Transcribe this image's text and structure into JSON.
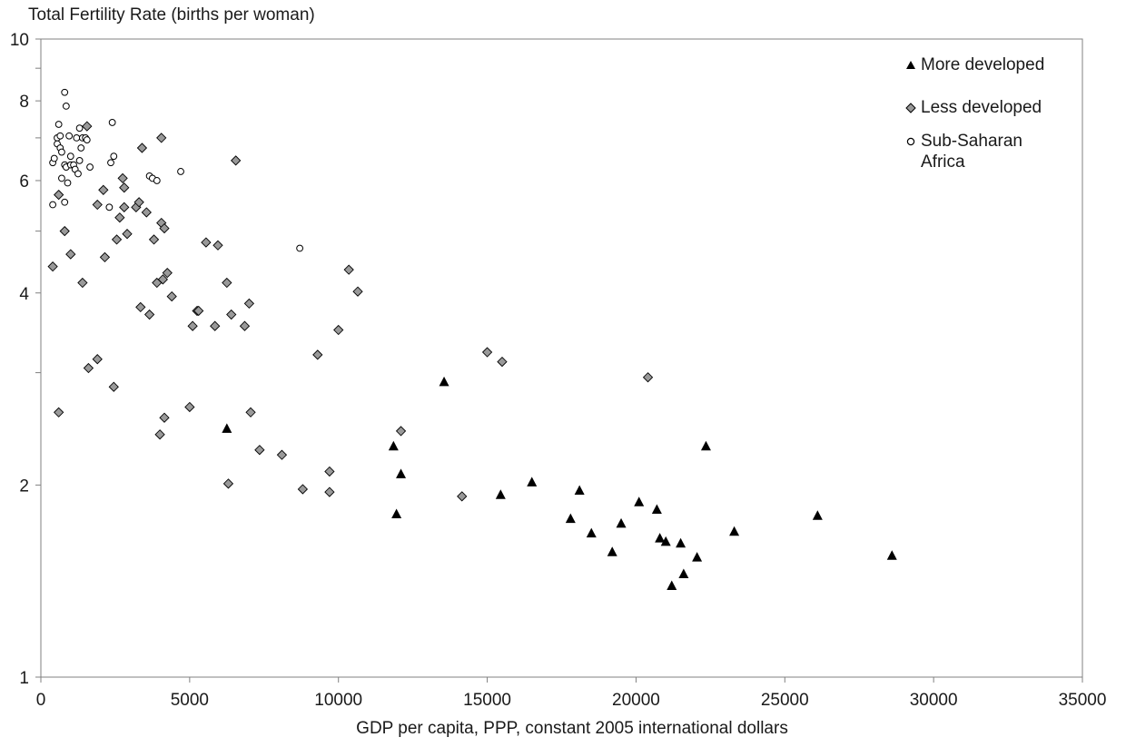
{
  "chart_data": {
    "type": "scatter",
    "title": "Total Fertility Rate (births per woman)",
    "xlabel": "GDP per capita, PPP, constant 2005 international dollars",
    "ylabel": "Total Fertility Rate (births per woman)",
    "xlim": [
      0,
      35000
    ],
    "ylim": [
      1,
      10
    ],
    "yscale": "log",
    "x_ticks": [
      "0",
      "5000",
      "10000",
      "15000",
      "20000",
      "25000",
      "30000",
      "35000"
    ],
    "y_ticks": [
      "1",
      "2",
      "4",
      "6",
      "8",
      "10"
    ],
    "grid": false,
    "legend_position": "top-right",
    "series": [
      {
        "name": "More developed",
        "marker": "triangle",
        "color": "#000000",
        "points": [
          [
            6250,
            2.45
          ],
          [
            11850,
            2.3
          ],
          [
            11950,
            1.8
          ],
          [
            12100,
            2.08
          ],
          [
            13550,
            2.9
          ],
          [
            15450,
            1.93
          ],
          [
            16500,
            2.02
          ],
          [
            17800,
            1.77
          ],
          [
            18100,
            1.96
          ],
          [
            18500,
            1.68
          ],
          [
            19200,
            1.57
          ],
          [
            19500,
            1.74
          ],
          [
            20100,
            1.88
          ],
          [
            20700,
            1.83
          ],
          [
            20800,
            1.65
          ],
          [
            21000,
            1.63
          ],
          [
            21200,
            1.39
          ],
          [
            21500,
            1.62
          ],
          [
            21600,
            1.45
          ],
          [
            22050,
            1.54
          ],
          [
            22350,
            2.3
          ],
          [
            23300,
            1.69
          ],
          [
            26100,
            1.79
          ],
          [
            28600,
            1.55
          ]
        ]
      },
      {
        "name": "Less developed",
        "marker": "diamond",
        "color": "#999999",
        "points": [
          [
            400,
            4.4
          ],
          [
            600,
            5.7
          ],
          [
            600,
            2.6
          ],
          [
            800,
            5.0
          ],
          [
            1000,
            4.6
          ],
          [
            1400,
            4.15
          ],
          [
            1550,
            7.3
          ],
          [
            1600,
            3.05
          ],
          [
            1900,
            5.5
          ],
          [
            1900,
            3.15
          ],
          [
            2100,
            5.8
          ],
          [
            2150,
            4.55
          ],
          [
            2450,
            2.85
          ],
          [
            2550,
            4.85
          ],
          [
            2650,
            5.25
          ],
          [
            2750,
            6.05
          ],
          [
            2800,
            5.45
          ],
          [
            2800,
            5.85
          ],
          [
            2900,
            4.95
          ],
          [
            3200,
            5.45
          ],
          [
            3300,
            5.55
          ],
          [
            3350,
            3.8
          ],
          [
            3400,
            6.75
          ],
          [
            3550,
            5.35
          ],
          [
            3650,
            3.7
          ],
          [
            3800,
            4.85
          ],
          [
            3900,
            4.15
          ],
          [
            4000,
            2.4
          ],
          [
            4050,
            5.15
          ],
          [
            4050,
            7.0
          ],
          [
            4100,
            4.2
          ],
          [
            4150,
            5.05
          ],
          [
            4150,
            2.55
          ],
          [
            4250,
            4.3
          ],
          [
            4400,
            3.95
          ],
          [
            5000,
            2.65
          ],
          [
            5100,
            3.55
          ],
          [
            5250,
            3.75
          ],
          [
            5300,
            3.75
          ],
          [
            5550,
            4.8
          ],
          [
            5850,
            3.55
          ],
          [
            5950,
            4.75
          ],
          [
            6250,
            4.15
          ],
          [
            6300,
            2.01
          ],
          [
            6400,
            3.7
          ],
          [
            6550,
            6.45
          ],
          [
            6850,
            3.55
          ],
          [
            7000,
            3.85
          ],
          [
            7050,
            2.6
          ],
          [
            7350,
            2.27
          ],
          [
            8100,
            2.23
          ],
          [
            8800,
            1.97
          ],
          [
            9300,
            3.2
          ],
          [
            9700,
            2.1
          ],
          [
            9700,
            1.95
          ],
          [
            10000,
            3.5
          ],
          [
            10350,
            4.35
          ],
          [
            10650,
            4.02
          ],
          [
            12100,
            2.43
          ],
          [
            14150,
            1.92
          ],
          [
            15000,
            3.23
          ],
          [
            15500,
            3.12
          ],
          [
            20400,
            2.95
          ]
        ]
      },
      {
        "name": "Sub-Saharan Africa",
        "marker": "circle",
        "color": "#000000",
        "points": [
          [
            400,
            5.5
          ],
          [
            400,
            6.4
          ],
          [
            450,
            6.5
          ],
          [
            550,
            7.0
          ],
          [
            550,
            6.85
          ],
          [
            600,
            7.35
          ],
          [
            650,
            7.05
          ],
          [
            650,
            6.75
          ],
          [
            700,
            6.05
          ],
          [
            700,
            6.65
          ],
          [
            800,
            8.25
          ],
          [
            800,
            5.55
          ],
          [
            800,
            6.35
          ],
          [
            850,
            7.85
          ],
          [
            850,
            6.3
          ],
          [
            900,
            5.95
          ],
          [
            950,
            7.05
          ],
          [
            1000,
            6.35
          ],
          [
            1000,
            6.55
          ],
          [
            1100,
            6.35
          ],
          [
            1150,
            6.25
          ],
          [
            1200,
            7.0
          ],
          [
            1250,
            6.15
          ],
          [
            1300,
            7.25
          ],
          [
            1300,
            6.45
          ],
          [
            1350,
            6.75
          ],
          [
            1400,
            7.0
          ],
          [
            1500,
            7.0
          ],
          [
            1550,
            6.95
          ],
          [
            1650,
            6.3
          ],
          [
            2300,
            5.45
          ],
          [
            2350,
            6.4
          ],
          [
            2400,
            7.4
          ],
          [
            2450,
            6.55
          ],
          [
            3650,
            6.1
          ],
          [
            3750,
            6.05
          ],
          [
            3900,
            6.0
          ],
          [
            4700,
            6.2
          ],
          [
            8700,
            4.7
          ]
        ]
      }
    ]
  },
  "colors": {
    "axis": "#808080",
    "frame": "#808080",
    "triangle_fill": "#000000",
    "diamond_fill": "#999999",
    "diamond_stroke": "#000000",
    "circle_fill": "#ffffff",
    "circle_stroke": "#000000"
  }
}
